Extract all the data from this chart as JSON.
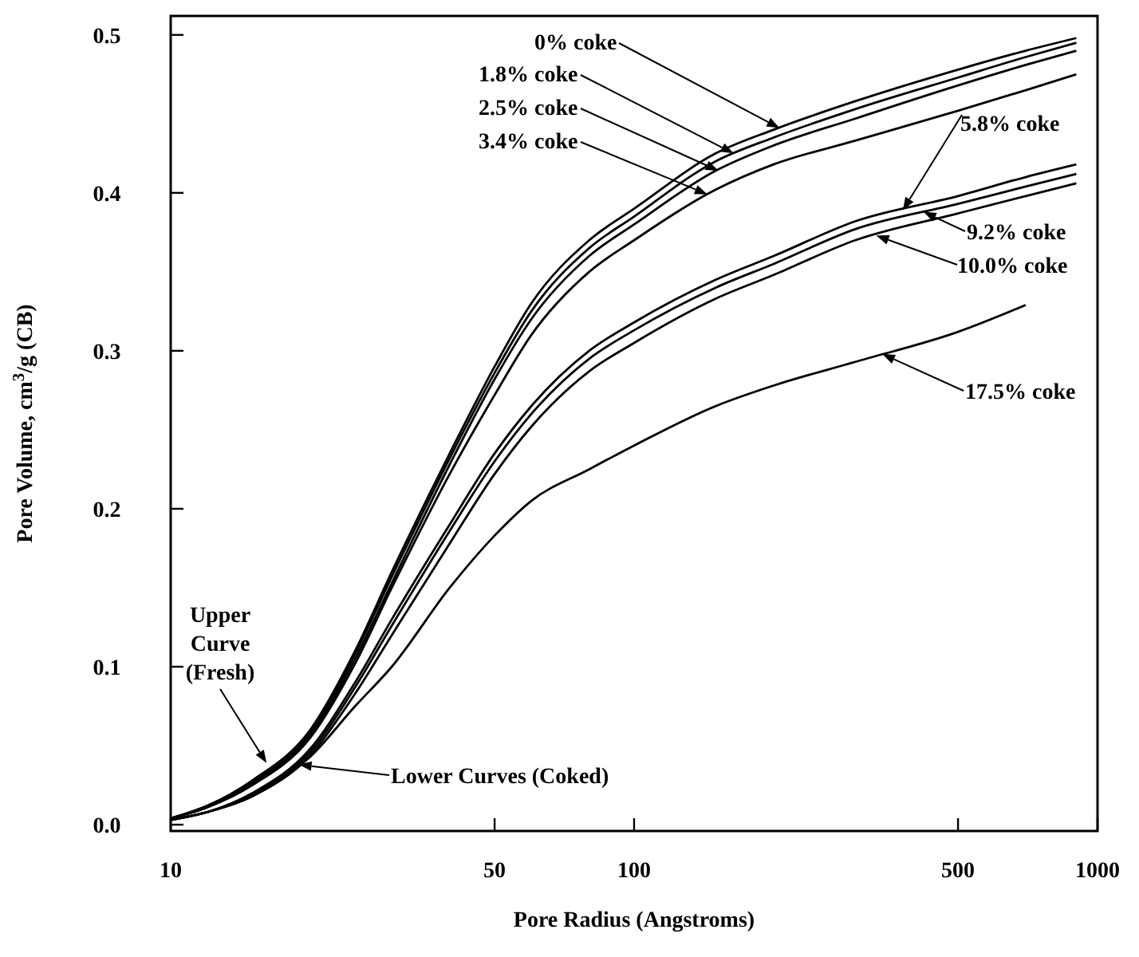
{
  "chart_data": {
    "type": "line",
    "xlabel": "Pore Radius (Angstroms)",
    "ylabel": "Pore Volume, cm$^{3}$/g  (CB)",
    "log": "x",
    "xlim": [
      10,
      1000
    ],
    "xticks": [
      10,
      50,
      100,
      500,
      1000
    ],
    "ylim": [
      -0.004,
      0.512
    ],
    "yticks": [
      {
        "value": 0,
        "label": "0.0"
      },
      {
        "value": 0.1,
        "label": "0.1"
      },
      {
        "value": 0.2,
        "label": "0.2"
      },
      {
        "value": 0.3,
        "label": "0.3"
      },
      {
        "value": 0.4,
        "label": "0.4"
      },
      {
        "value": 0.5,
        "label": "0.5"
      }
    ],
    "grid": false,
    "marker": "none",
    "line_style": "solid",
    "x": [
      10,
      12,
      15,
      20,
      25,
      30,
      40,
      50,
      60,
      80,
      100,
      150,
      200,
      300,
      500,
      700,
      900
    ],
    "series": [
      {
        "color": "#000000",
        "values": [
          0.004,
          0.012,
          0.028,
          0.06,
          0.11,
          0.16,
          0.235,
          0.29,
          0.33,
          0.37,
          0.39,
          0.425,
          0.44,
          0.458,
          0.478,
          0.49,
          0.498
        ]
      },
      {
        "color": "#000000",
        "values": [
          0.004,
          0.012,
          0.027,
          0.058,
          0.108,
          0.157,
          0.232,
          0.286,
          0.325,
          0.365,
          0.385,
          0.42,
          0.435,
          0.453,
          0.473,
          0.486,
          0.495
        ]
      },
      {
        "color": "#000000",
        "values": [
          0.004,
          0.011,
          0.026,
          0.056,
          0.105,
          0.153,
          0.228,
          0.282,
          0.32,
          0.36,
          0.38,
          0.414,
          0.43,
          0.447,
          0.468,
          0.481,
          0.49
        ]
      },
      {
        "color": "#000000",
        "values": [
          0.004,
          0.011,
          0.025,
          0.055,
          0.102,
          0.15,
          0.222,
          0.272,
          0.31,
          0.35,
          0.37,
          0.402,
          0.418,
          0.433,
          0.452,
          0.465,
          0.475
        ]
      },
      {
        "color": "#000000",
        "values": [
          0.003,
          0.008,
          0.02,
          0.048,
          0.09,
          0.13,
          0.19,
          0.235,
          0.265,
          0.3,
          0.318,
          0.345,
          0.36,
          0.382,
          0.398,
          0.41,
          0.418
        ]
      },
      {
        "color": "#000000",
        "values": [
          0.003,
          0.008,
          0.019,
          0.046,
          0.087,
          0.126,
          0.186,
          0.23,
          0.26,
          0.295,
          0.313,
          0.34,
          0.355,
          0.377,
          0.393,
          0.404,
          0.412
        ]
      },
      {
        "color": "#000000",
        "values": [
          0.003,
          0.008,
          0.018,
          0.044,
          0.083,
          0.12,
          0.178,
          0.222,
          0.252,
          0.287,
          0.305,
          0.333,
          0.348,
          0.37,
          0.387,
          0.398,
          0.406
        ]
      },
      {
        "color": "#000000",
        "x": [
          10,
          12,
          15,
          20,
          25,
          30,
          40,
          50,
          60,
          80,
          100,
          150,
          200,
          300,
          500,
          700
        ],
        "values": [
          0.003,
          0.008,
          0.018,
          0.043,
          0.075,
          0.1,
          0.15,
          0.183,
          0.205,
          0.225,
          0.24,
          0.265,
          0.278,
          0.293,
          0.312,
          0.329
        ]
      }
    ],
    "annotations": [
      {
        "text": "0% coke",
        "x": 206,
        "y": 0.441
      },
      {
        "text": "1.8% coke",
        "x": 164,
        "y": 0.425
      },
      {
        "text": "2.5% coke",
        "x": 152,
        "y": 0.414
      },
      {
        "text": "3.4% coke",
        "x": 144,
        "y": 0.399
      },
      {
        "text": "5.8% coke",
        "x": 380,
        "y": 0.389
      },
      {
        "text": "9.2% coke",
        "x": 421,
        "y": 0.388
      },
      {
        "text": "10.0% coke",
        "x": 333,
        "y": 0.373
      },
      {
        "text": "17.5% coke",
        "x": 343,
        "y": 0.298
      },
      {
        "text": "Upper Curve (Fresh)",
        "x": 16.1,
        "y": 0.039
      },
      {
        "text": "Lower Curves (Coked)",
        "x": 18.9,
        "y": 0.038
      }
    ]
  }
}
